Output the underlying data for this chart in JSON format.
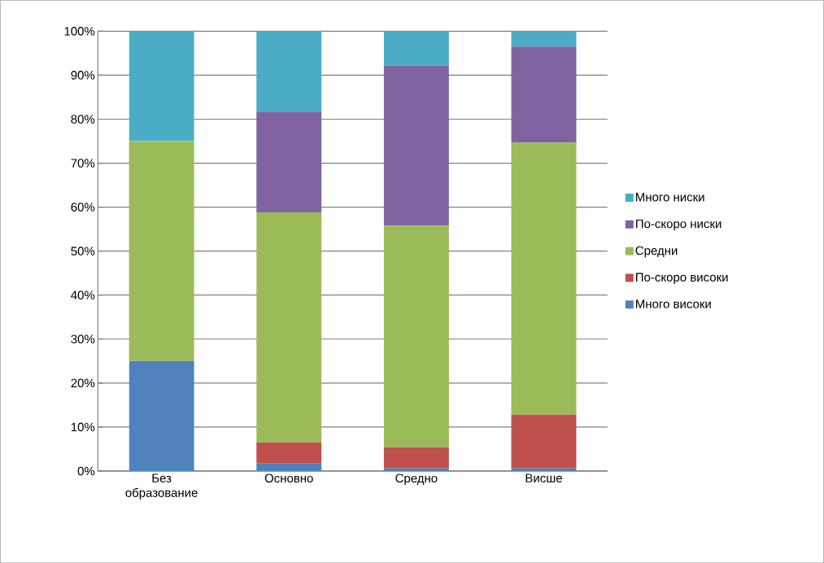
{
  "chart_data": {
    "type": "bar",
    "stacked": true,
    "categories": [
      "Без образование",
      "Основно",
      "Средно",
      "Висше"
    ],
    "series": [
      {
        "name": "Много високи",
        "color": "#4f81bd",
        "values": [
          25,
          1.7,
          0.6,
          0.6
        ]
      },
      {
        "name": "По-скоро високи",
        "color": "#c0504d",
        "values": [
          0,
          4.8,
          4.8,
          12.2
        ]
      },
      {
        "name": "Средни",
        "color": "#9bbb59",
        "values": [
          50,
          52.3,
          50.4,
          61.9
        ]
      },
      {
        "name": "По-скоро ниски",
        "color": "#8064a2",
        "values": [
          0,
          22.9,
          36.4,
          21.8
        ]
      },
      {
        "name": "Много ниски",
        "color": "#4bacc6",
        "values": [
          25,
          18.3,
          7.8,
          3.5
        ]
      }
    ],
    "ylim": [
      0,
      100
    ],
    "yticks": [
      {
        "value": 0,
        "label": "0%"
      },
      {
        "value": 10,
        "label": "10%"
      },
      {
        "value": 20,
        "label": "20%"
      },
      {
        "value": 30,
        "label": "30%"
      },
      {
        "value": 40,
        "label": "40%"
      },
      {
        "value": 50,
        "label": "50%"
      },
      {
        "value": 60,
        "label": "60%"
      },
      {
        "value": 70,
        "label": "70%"
      },
      {
        "value": 80,
        "label": "80%"
      },
      {
        "value": 90,
        "label": "90%"
      },
      {
        "value": 100,
        "label": "100%"
      }
    ],
    "grid": "y",
    "legend": "right"
  }
}
